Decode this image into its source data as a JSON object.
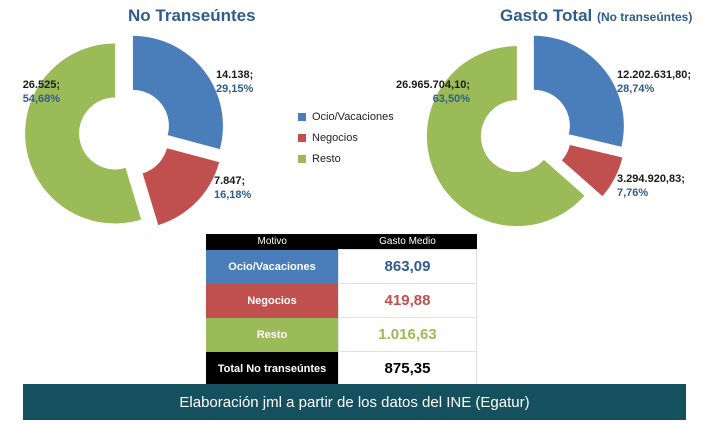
{
  "chart_data": [
    {
      "type": "pie",
      "title": "No Transeúntes",
      "slices": [
        {
          "name": "Ocio/Vacaciones",
          "value_text": "14.138;",
          "pct_text": "29,15%",
          "value": 14138,
          "pct": 29.15,
          "color": "#4a7ebb"
        },
        {
          "name": "Negocios",
          "value_text": "7.847;",
          "pct_text": "16,18%",
          "value": 7847,
          "pct": 16.18,
          "color": "#c0504d"
        },
        {
          "name": "Resto",
          "value_text": "26.525;",
          "pct_text": "54,68%",
          "value": 26525,
          "pct": 54.68,
          "color": "#9bbb59"
        }
      ]
    },
    {
      "type": "pie",
      "title": "Gasto Total",
      "subtitle": "(No transeúntes)",
      "slices": [
        {
          "name": "Ocio/Vacaciones",
          "value_text": "12.202.631,80;",
          "pct_text": "28,74%",
          "value": 12202631.8,
          "pct": 28.74,
          "color": "#4a7ebb"
        },
        {
          "name": "Negocios",
          "value_text": "3.294.920,83;",
          "pct_text": "7,76%",
          "value": 3294920.83,
          "pct": 7.76,
          "color": "#c0504d"
        },
        {
          "name": "Resto",
          "value_text": "26.965.704,10;",
          "pct_text": "63,50%",
          "value": 26965704.1,
          "pct": 63.5,
          "color": "#9bbb59"
        }
      ]
    },
    {
      "type": "table",
      "headers": [
        "Motivo",
        "Gasto Medio"
      ],
      "rows": [
        {
          "motivo": "Ocio/Vacaciones",
          "gasto": "863,09",
          "bg": "#4a7ebb",
          "fg": "#2f5d8c"
        },
        {
          "motivo": "Negocios",
          "gasto": "419,88",
          "bg": "#c0504d",
          "fg": "#c0504d"
        },
        {
          "motivo": "Resto",
          "gasto": "1.016,63",
          "bg": "#9bbb59",
          "fg": "#9bbb59"
        },
        {
          "motivo": "Total No transeúntes",
          "gasto": "875,35",
          "bg": "#000000",
          "fg": "#000000"
        }
      ]
    }
  ],
  "legend": [
    {
      "label": "Ocio/Vacaciones",
      "color": "#4a7ebb"
    },
    {
      "label": "Negocios",
      "color": "#c0504d"
    },
    {
      "label": "Resto",
      "color": "#9bbb59"
    }
  ],
  "footer": "Elaboración jml a partir de los datos del INE (Egatur)"
}
